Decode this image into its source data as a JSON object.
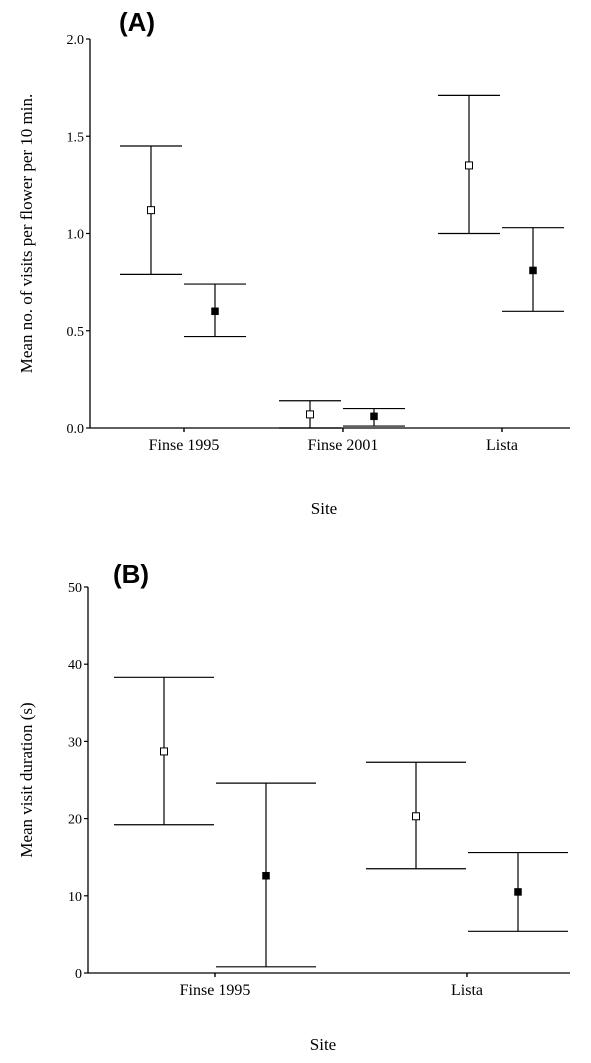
{
  "chart_data": [
    {
      "type": "scatter",
      "panel_label": "(A)",
      "xlabel": "Site",
      "ylabel": "Mean no. of visits per flower per 10 min.",
      "categories": [
        "Finse 1995",
        "Finse 2001",
        "Lista"
      ],
      "ylim": [
        0,
        2.0
      ],
      "yticks": [
        "0.0",
        "0.5",
        "1.0",
        "1.5",
        "2.0"
      ],
      "grid": false,
      "series": [
        {
          "marker": "open-square",
          "color": "#000000",
          "points": [
            {
              "category": "Finse 1995",
              "mean": 1.12,
              "low": 0.79,
              "high": 1.45
            },
            {
              "category": "Finse 2001",
              "mean": 0.07,
              "low": 0.0,
              "high": 0.14
            },
            {
              "category": "Lista",
              "mean": 1.35,
              "low": 1.0,
              "high": 1.71
            }
          ]
        },
        {
          "marker": "filled-square",
          "color": "#000000",
          "points": [
            {
              "category": "Finse 1995",
              "mean": 0.6,
              "low": 0.47,
              "high": 0.74
            },
            {
              "category": "Finse 2001",
              "mean": 0.06,
              "low": 0.01,
              "high": 0.1
            },
            {
              "category": "Lista",
              "mean": 0.81,
              "low": 0.6,
              "high": 1.03
            }
          ]
        }
      ]
    },
    {
      "type": "scatter",
      "panel_label": "(B)",
      "xlabel": "Site",
      "ylabel": "Mean visit duration (s)",
      "categories": [
        "Finse 1995",
        "Lista"
      ],
      "ylim": [
        0,
        50
      ],
      "yticks": [
        "0",
        "10",
        "20",
        "30",
        "40",
        "50"
      ],
      "grid": false,
      "series": [
        {
          "marker": "open-square",
          "color": "#000000",
          "points": [
            {
              "category": "Finse 1995",
              "mean": 28.7,
              "low": 19.2,
              "high": 38.3
            },
            {
              "category": "Lista",
              "mean": 20.3,
              "low": 13.5,
              "high": 27.3
            }
          ]
        },
        {
          "marker": "filled-square",
          "color": "#000000",
          "points": [
            {
              "category": "Finse 1995",
              "mean": 12.6,
              "low": 0.8,
              "high": 24.6
            },
            {
              "category": "Lista",
              "mean": 10.5,
              "low": 5.4,
              "high": 15.6
            }
          ]
        }
      ]
    }
  ]
}
